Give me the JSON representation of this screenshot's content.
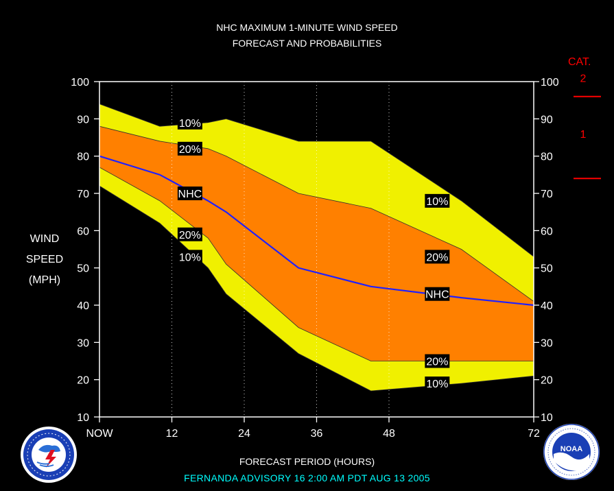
{
  "header": {
    "title_line1": "NHC MAXIMUM 1-MINUTE WIND SPEED",
    "title_line2": "FORECAST AND PROBABILITIES"
  },
  "footer": {
    "advisory": "FERNANDA   ADVISORY  16 2:00 AM PDT AUG 13 2005"
  },
  "colors": {
    "band_10": "#f0f000",
    "band_20": "#ff8000",
    "nhc_line": "#2020ff",
    "category_marks": "#ff0000",
    "background": "#000000",
    "axes": "#ffffff",
    "advisory_text": "#00ffff"
  },
  "logos": {
    "left": "nws-logo-icon",
    "right": "noaa-logo-icon"
  },
  "chart_data": {
    "type": "area",
    "title": "NHC MAXIMUM 1-MINUTE WIND SPEED FORECAST AND PROBABILITIES",
    "xlabel": "FORECAST PERIOD (HOURS)",
    "ylabel_lines": [
      "WIND",
      "SPEED",
      "(MPH)"
    ],
    "xlim": [
      0,
      72
    ],
    "ylim": [
      10,
      100
    ],
    "x_ticks": [
      {
        "x": 0,
        "label": "NOW"
      },
      {
        "x": 12,
        "label": "12"
      },
      {
        "x": 24,
        "label": "24"
      },
      {
        "x": 36,
        "label": "36"
      },
      {
        "x": 48,
        "label": "48"
      },
      {
        "x": 72,
        "label": "72"
      }
    ],
    "y_ticks": [
      10,
      20,
      30,
      40,
      50,
      60,
      70,
      80,
      90,
      100
    ],
    "grid": "vertical dotted at forecast hours",
    "series": [
      {
        "name": "10%",
        "role": "upper_10",
        "x": [
          0,
          10,
          18,
          21,
          33,
          45,
          60,
          72
        ],
        "values": [
          94,
          88,
          89,
          90,
          84,
          84,
          68,
          53
        ]
      },
      {
        "name": "20%",
        "role": "upper_20",
        "x": [
          0,
          10,
          18,
          21,
          33,
          45,
          60,
          72
        ],
        "values": [
          88,
          84,
          82,
          80,
          70,
          66,
          55,
          41
        ]
      },
      {
        "name": "NHC",
        "role": "nhc",
        "x": [
          0,
          10,
          18,
          21,
          33,
          45,
          60,
          72
        ],
        "values": [
          80,
          75,
          68,
          65,
          50,
          45,
          42,
          40
        ]
      },
      {
        "name": "20%",
        "role": "lower_20",
        "x": [
          0,
          10,
          18,
          21,
          33,
          45,
          60,
          72
        ],
        "values": [
          77,
          68,
          58,
          51,
          34,
          25,
          25,
          25
        ]
      },
      {
        "name": "10%",
        "role": "lower_10",
        "x": [
          0,
          10,
          18,
          21,
          33,
          45,
          60,
          72
        ],
        "values": [
          72,
          62,
          50,
          43,
          27,
          17,
          19,
          21
        ]
      }
    ],
    "annotations": [
      {
        "text": "10%",
        "x": 15,
        "y": 89
      },
      {
        "text": "20%",
        "x": 15,
        "y": 82
      },
      {
        "text": "NHC",
        "x": 15,
        "y": 70
      },
      {
        "text": "20%",
        "x": 15,
        "y": 59
      },
      {
        "text": "10%",
        "x": 15,
        "y": 53
      },
      {
        "text": "10%",
        "x": 56,
        "y": 68
      },
      {
        "text": "20%",
        "x": 56,
        "y": 53
      },
      {
        "text": "NHC",
        "x": 56,
        "y": 43
      },
      {
        "text": "20%",
        "x": 56,
        "y": 25
      },
      {
        "text": "10%",
        "x": 56,
        "y": 19
      }
    ],
    "category_scale": {
      "title": "CAT.",
      "labels": [
        {
          "text": "2",
          "y": 101
        },
        {
          "text": "1",
          "y": 86
        }
      ],
      "thresholds": [
        96,
        74
      ]
    }
  }
}
